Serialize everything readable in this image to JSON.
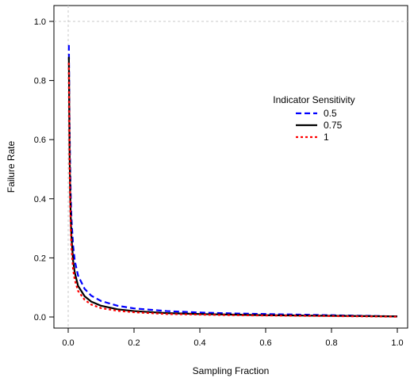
{
  "chart_data": {
    "type": "line",
    "title": "",
    "xlabel": "Sampling Fraction",
    "ylabel": "Failure Rate",
    "xlim": [
      0.0,
      1.0
    ],
    "ylim": [
      0.0,
      1.0
    ],
    "x_ticks": [
      "0.0",
      "0.2",
      "0.4",
      "0.6",
      "0.8",
      "1.0"
    ],
    "y_ticks": [
      "0.0",
      "0.2",
      "0.4",
      "0.6",
      "0.8",
      "1.0"
    ],
    "reference_lines": {
      "horizontal_y": 1.0,
      "vertical_x": 0.0,
      "style": "dotted",
      "color": "#c8c8c8"
    },
    "grid": false,
    "legend": {
      "title": "Indicator Sensitivity",
      "position": "upper-right",
      "entries": [
        "0.5",
        "0.75",
        "1"
      ]
    },
    "series": [
      {
        "name": "0.5",
        "color": "#0000ff",
        "dash": "dashed",
        "x": [
          0.002,
          0.004,
          0.006,
          0.008,
          0.01,
          0.015,
          0.02,
          0.03,
          0.05,
          0.07,
          0.1,
          0.15,
          0.2,
          0.3,
          0.4,
          0.5,
          0.6,
          0.7,
          0.8,
          0.9,
          1.0
        ],
        "y": [
          0.92,
          0.66,
          0.5,
          0.4,
          0.33,
          0.24,
          0.19,
          0.14,
          0.095,
          0.072,
          0.054,
          0.038,
          0.029,
          0.02,
          0.015,
          0.012,
          0.01,
          0.008,
          0.006,
          0.004,
          0.002
        ]
      },
      {
        "name": "0.75",
        "color": "#000000",
        "dash": "solid",
        "x": [
          0.002,
          0.004,
          0.006,
          0.008,
          0.01,
          0.015,
          0.02,
          0.03,
          0.05,
          0.07,
          0.1,
          0.15,
          0.2,
          0.3,
          0.4,
          0.5,
          0.6,
          0.7,
          0.8,
          0.9,
          1.0
        ],
        "y": [
          0.88,
          0.58,
          0.42,
          0.33,
          0.27,
          0.19,
          0.15,
          0.105,
          0.07,
          0.052,
          0.038,
          0.026,
          0.02,
          0.013,
          0.01,
          0.008,
          0.006,
          0.005,
          0.004,
          0.003,
          0.002
        ]
      },
      {
        "name": "1",
        "color": "#ff0000",
        "dash": "dotted",
        "x": [
          0.002,
          0.004,
          0.006,
          0.008,
          0.01,
          0.015,
          0.02,
          0.03,
          0.05,
          0.07,
          0.1,
          0.15,
          0.2,
          0.3,
          0.4,
          0.5,
          0.6,
          0.7,
          0.8,
          0.9,
          1.0
        ],
        "y": [
          0.86,
          0.54,
          0.38,
          0.29,
          0.23,
          0.16,
          0.125,
          0.088,
          0.058,
          0.042,
          0.03,
          0.021,
          0.016,
          0.01,
          0.008,
          0.006,
          0.005,
          0.004,
          0.003,
          0.002,
          0.001
        ]
      }
    ]
  }
}
